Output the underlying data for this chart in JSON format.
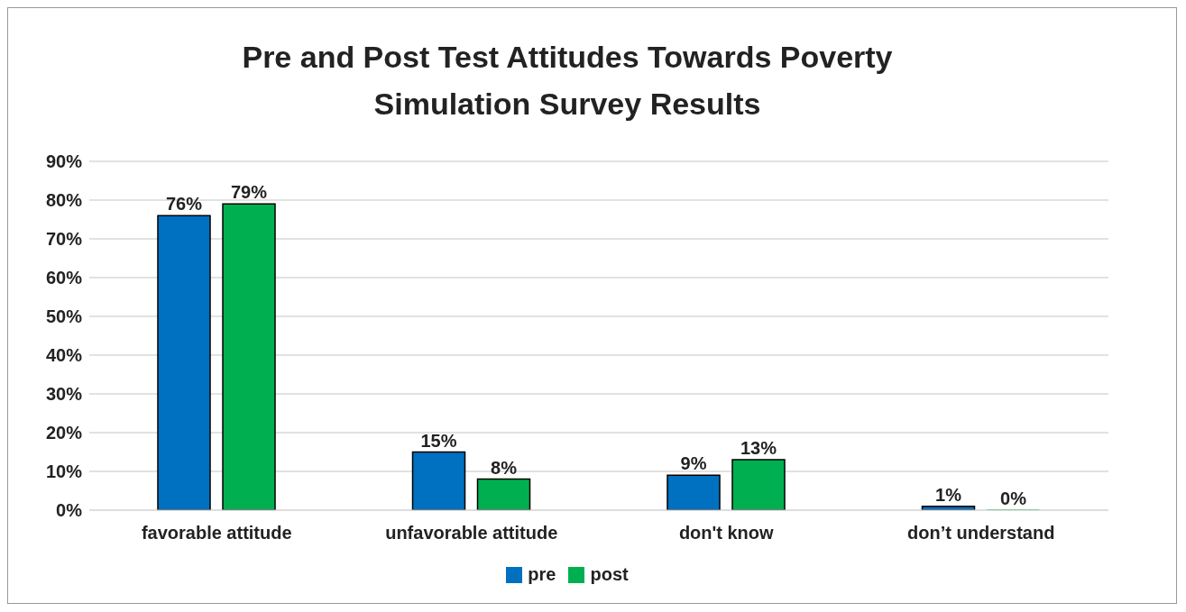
{
  "chart_data": {
    "type": "bar",
    "title": "Pre and Post Test Attitudes Towards Poverty Simulation Survey Results",
    "categories": [
      "favorable attitude",
      "unfavorable attitude",
      "don't know",
      "don’t understand"
    ],
    "series": [
      {
        "name": "pre",
        "color": "#0070c0",
        "values": [
          76,
          15,
          9,
          1
        ],
        "value_labels": [
          "76%",
          "15%",
          "9%",
          "1%"
        ]
      },
      {
        "name": "post",
        "color": "#00b050",
        "values": [
          79,
          8,
          13,
          0
        ],
        "value_labels": [
          "79%",
          "8%",
          "13%",
          "0%"
        ]
      }
    ],
    "ylim": [
      0,
      90
    ],
    "yticks": [
      {
        "value": 0,
        "label": "0%"
      },
      {
        "value": 10,
        "label": "10%"
      },
      {
        "value": 20,
        "label": "20%"
      },
      {
        "value": 30,
        "label": "30%"
      },
      {
        "value": 40,
        "label": "40%"
      },
      {
        "value": 50,
        "label": "50%"
      },
      {
        "value": 60,
        "label": "60%"
      },
      {
        "value": 70,
        "label": "70%"
      },
      {
        "value": 80,
        "label": "80%"
      },
      {
        "value": 90,
        "label": "90%"
      }
    ],
    "grid": "y",
    "legend": "bottom"
  }
}
